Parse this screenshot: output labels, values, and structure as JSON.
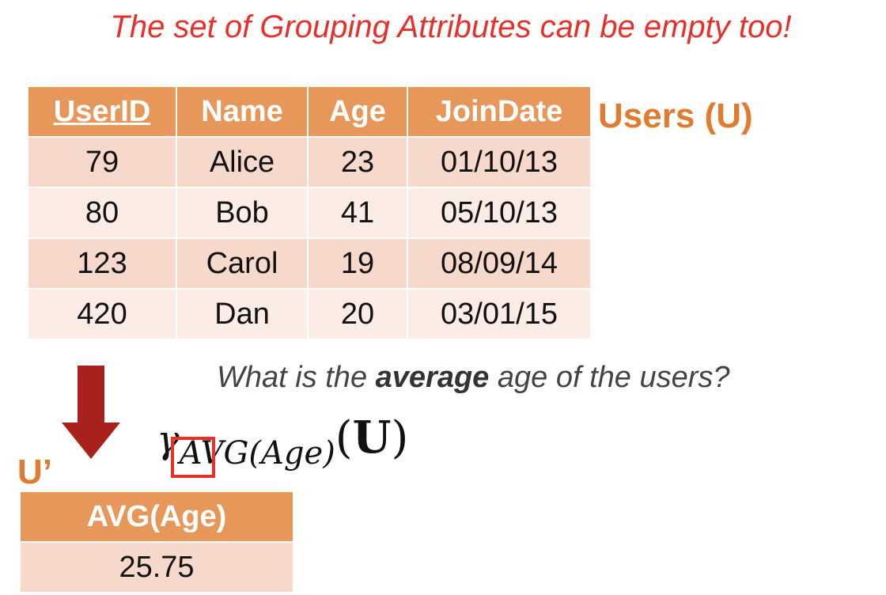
{
  "title": "The set of Grouping Attributes can be empty too!",
  "users_table": {
    "label": "Users (U)",
    "columns": [
      "UserID",
      "Name",
      "Age",
      "JoinDate"
    ],
    "rows": [
      [
        "79",
        "Alice",
        "23",
        "01/10/13"
      ],
      [
        "80",
        "Bob",
        "41",
        "05/10/13"
      ],
      [
        "123",
        "Carol",
        "19",
        "08/09/14"
      ],
      [
        "420",
        "Dan",
        "20",
        "03/01/15"
      ]
    ]
  },
  "question": {
    "before": "What is the ",
    "emphasis": "average",
    "after": " age of the users?"
  },
  "formula": {
    "operator": "γ",
    "subscript": "AVG(Age)",
    "open_paren": "(",
    "relation": "U",
    "close_paren": ")"
  },
  "result_table": {
    "label": "U’",
    "columns": [
      "AVG(Age)"
    ],
    "rows": [
      [
        "25.75"
      ]
    ]
  },
  "colors": {
    "title": "#e8302a",
    "header_fill": "#e8975a",
    "row_dark": "#f7d9cc",
    "row_light": "#fbece6",
    "label": "#e07b30",
    "arrow": "#a8211c",
    "highlight": "#e8302a"
  },
  "icons": {
    "arrow": "down-arrow-icon"
  }
}
